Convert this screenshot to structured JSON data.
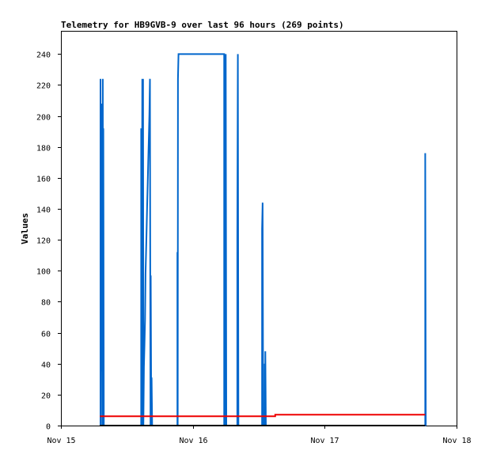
{
  "chart_data": {
    "type": "line",
    "title": "Telemetry for HB9GVB-9 over last 96 hours (269 points)",
    "ylabel": "Values",
    "xlabel": "",
    "ylim": [
      0,
      255
    ],
    "xlim_hours": [
      0,
      72
    ],
    "yticks": [
      0,
      20,
      40,
      60,
      80,
      100,
      120,
      140,
      160,
      180,
      200,
      220,
      240
    ],
    "xticks": [
      {
        "label": "Nov 15",
        "hour": 0
      },
      {
        "label": "Nov 16",
        "hour": 24
      },
      {
        "label": "Nov 17",
        "hour": 48
      },
      {
        "label": "Nov 18",
        "hour": 72
      }
    ],
    "grid": false,
    "colors": {
      "series1": "#0066cc",
      "series2": "#ee0000",
      "series3": "#000000"
    },
    "series": [
      {
        "points": [
          [
            7.2,
            0
          ],
          [
            7.2,
            224
          ],
          [
            7.28,
            0
          ],
          [
            7.3,
            173
          ],
          [
            7.36,
            208
          ],
          [
            7.4,
            35
          ],
          [
            7.46,
            104
          ],
          [
            7.5,
            174
          ],
          [
            7.6,
            0
          ],
          [
            7.62,
            224
          ],
          [
            7.7,
            0
          ],
          [
            7.72,
            192
          ],
          [
            7.8,
            0
          ],
          [
            14.6,
            0
          ],
          [
            14.6,
            192
          ],
          [
            14.7,
            0
          ],
          [
            14.8,
            224
          ],
          [
            14.9,
            0
          ],
          [
            14.95,
            224
          ],
          [
            15.0,
            0
          ],
          [
            15.1,
            38
          ],
          [
            15.2,
            52
          ],
          [
            15.3,
            68
          ],
          [
            15.4,
            98
          ],
          [
            15.5,
            112
          ],
          [
            15.6,
            127
          ],
          [
            15.7,
            143
          ],
          [
            15.8,
            157
          ],
          [
            15.9,
            172
          ],
          [
            16.0,
            186
          ],
          [
            16.1,
            201
          ],
          [
            16.2,
            224
          ],
          [
            16.3,
            0
          ],
          [
            16.35,
            97
          ],
          [
            16.45,
            0
          ],
          [
            16.5,
            31
          ],
          [
            16.6,
            0
          ],
          [
            21.2,
            0
          ],
          [
            21.2,
            112
          ],
          [
            21.25,
            0
          ],
          [
            21.3,
            224
          ],
          [
            21.4,
            240
          ],
          [
            29.7,
            240
          ],
          [
            29.7,
            0
          ],
          [
            29.8,
            240
          ],
          [
            29.9,
            0
          ],
          [
            30.0,
            240
          ],
          [
            30.1,
            0
          ],
          [
            32.1,
            0
          ],
          [
            32.1,
            120
          ],
          [
            32.2,
            240
          ],
          [
            32.3,
            0
          ],
          [
            36.6,
            0
          ],
          [
            36.6,
            127
          ],
          [
            36.7,
            144
          ],
          [
            36.8,
            0
          ],
          [
            37.1,
            0
          ],
          [
            37.1,
            40
          ],
          [
            37.15,
            0
          ],
          [
            37.2,
            48
          ],
          [
            37.3,
            0
          ],
          [
            66.3,
            0
          ],
          [
            66.3,
            176
          ],
          [
            66.4,
            0
          ]
        ]
      },
      {
        "points": [
          [
            7.1,
            6
          ],
          [
            39,
            6
          ],
          [
            39,
            7
          ],
          [
            66.3,
            7
          ]
        ]
      },
      {
        "points": [
          [
            7.1,
            0
          ],
          [
            66.3,
            0
          ]
        ]
      }
    ]
  }
}
